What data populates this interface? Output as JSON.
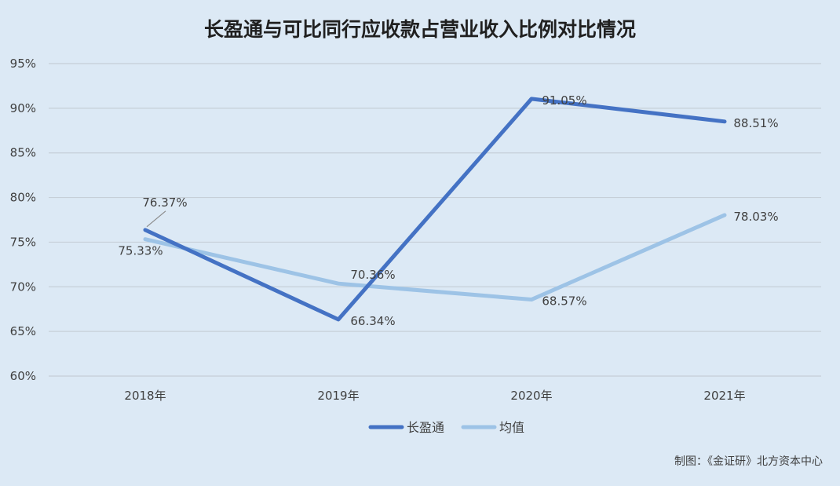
{
  "chart_data": {
    "type": "line",
    "title": "长盈通与可比同行应收款占营业收入比例对比情况",
    "categories": [
      "2018年",
      "2019年",
      "2020年",
      "2021年"
    ],
    "series": [
      {
        "name": "长盈通",
        "values": [
          76.37,
          66.34,
          91.05,
          88.51
        ],
        "labels": [
          "76.37%",
          "66.34%",
          "91.05%",
          "88.51%"
        ],
        "color": "#4472c4"
      },
      {
        "name": "均值",
        "values": [
          75.33,
          70.36,
          68.57,
          78.03
        ],
        "labels": [
          "75.33%",
          "70.36%",
          "68.57%",
          "78.03%"
        ],
        "color": "#9dc3e6"
      }
    ],
    "ylim": [
      60,
      95
    ],
    "yticks": [
      60,
      65,
      70,
      75,
      80,
      85,
      90,
      95
    ],
    "ytick_labels": [
      "60%",
      "65%",
      "70%",
      "75%",
      "80%",
      "85%",
      "90%",
      "95%"
    ],
    "grid": true,
    "legend": "bottom",
    "xlabel": "",
    "ylabel": ""
  },
  "source": "制图：《金证研》北方资本中心"
}
